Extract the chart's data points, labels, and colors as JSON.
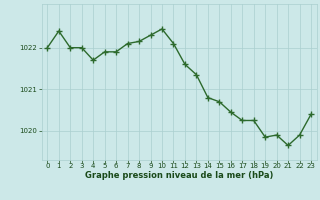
{
  "x": [
    0,
    1,
    2,
    3,
    4,
    5,
    6,
    7,
    8,
    9,
    10,
    11,
    12,
    13,
    14,
    15,
    16,
    17,
    18,
    19,
    20,
    21,
    22,
    23
  ],
  "y": [
    1022.0,
    1022.4,
    1022.0,
    1022.0,
    1021.7,
    1021.9,
    1021.9,
    1022.1,
    1022.15,
    1022.3,
    1022.45,
    1022.1,
    1021.6,
    1021.35,
    1020.8,
    1020.7,
    1020.45,
    1020.25,
    1020.25,
    1019.85,
    1019.9,
    1019.65,
    1019.9,
    1020.4
  ],
  "line_color": "#2d6a2d",
  "marker_color": "#2d6a2d",
  "bg_color": "#cce8e8",
  "grid_color": "#aacfcf",
  "axis_label_color": "#1a4a1a",
  "tick_label_color": "#1a4a1a",
  "xlabel": "Graphe pression niveau de la mer (hPa)",
  "ylim_min": 1019.3,
  "ylim_max": 1023.05,
  "ytick_positions": [
    1020,
    1021,
    1022
  ],
  "xtick_positions": [
    0,
    1,
    2,
    3,
    4,
    5,
    6,
    7,
    8,
    9,
    10,
    11,
    12,
    13,
    14,
    15,
    16,
    17,
    18,
    19,
    20,
    21,
    22,
    23
  ],
  "linewidth": 1.0,
  "markersize": 4.0,
  "xlabel_fontsize": 6.0,
  "tick_fontsize": 5.0
}
